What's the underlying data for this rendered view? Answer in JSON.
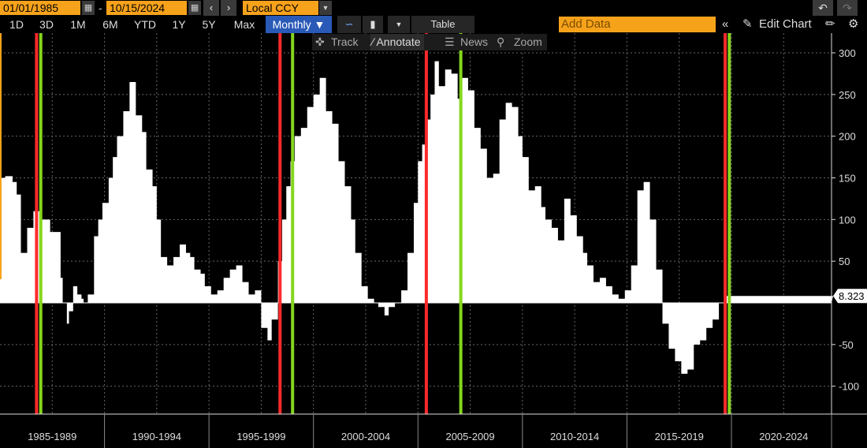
{
  "toolbar": {
    "start_date": "01/01/1985",
    "end_date": "10/15/2024",
    "date_separator": "-",
    "currency": "Local CCY",
    "prev_icon": "chevron-left-icon",
    "next_icon": "chevron-right-icon",
    "undo_icon": "undo-icon",
    "redo_icon": "redo-icon"
  },
  "periods": [
    "1D",
    "3D",
    "1M",
    "6M",
    "YTD",
    "1Y",
    "5Y",
    "Max"
  ],
  "frequency": "Monthly ▼",
  "table_label": "Table",
  "add_data_placeholder": "Add Data",
  "collapse_label": "«",
  "edit_chart_label": "Edit Chart",
  "tools": {
    "track": "Track",
    "annotate": "Annotate",
    "news": "News",
    "zoom": "Zoom"
  },
  "colors": {
    "accent_orange": "#f7a21b",
    "active_blue": "#2a5ab8",
    "background": "#000000",
    "area_fill": "#ffffff",
    "red_marker": "#ff2a2a",
    "green_marker": "#84d61d"
  },
  "chart_data": {
    "type": "area",
    "last_value_label": "8.323",
    "x_range": [
      1985.0,
      2024.79
    ],
    "y_range": [
      -125,
      310
    ],
    "y_ticks": [
      300,
      250,
      200,
      150,
      100,
      50,
      0,
      -50,
      -100
    ],
    "x_tick_labels": [
      "1985-1989",
      "1990-1994",
      "1995-1999",
      "2000-2004",
      "2005-2009",
      "2010-2014",
      "2015-2019",
      "2020-2024"
    ],
    "grid": true,
    "red_markers": [
      1986.75,
      1998.4,
      2005.4,
      2019.7
    ],
    "green_markers": [
      1986.95,
      1999.0,
      2007.05,
      2019.9
    ],
    "series": [
      {
        "x": [
          1985.0,
          1985.25,
          1985.6,
          1985.8,
          1986.0,
          1986.3,
          1986.6,
          1986.9,
          1987.1,
          1987.4,
          1987.6,
          1987.9,
          1988.0,
          1988.2,
          1988.3,
          1988.5,
          1988.7,
          1988.9,
          1989.0,
          1989.2,
          1989.5,
          1989.7,
          1989.9,
          1990.2,
          1990.4,
          1990.6,
          1990.9,
          1991.2,
          1991.5,
          1991.8,
          1992.0,
          1992.3,
          1992.5,
          1992.7,
          1993.0,
          1993.3,
          1993.6,
          1993.9,
          1994.1,
          1994.3,
          1994.6,
          1994.8,
          1995.1,
          1995.4,
          1995.7,
          1996.0,
          1996.3,
          1996.6,
          1996.9,
          1997.2,
          1997.5,
          1997.8,
          1998.0,
          1998.3,
          1998.5,
          1998.7,
          1998.9,
          1999.1,
          1999.4,
          1999.7,
          2000.0,
          2000.3,
          2000.6,
          2000.9,
          2001.2,
          2001.5,
          2001.8,
          2002.0,
          2002.3,
          2002.6,
          2002.9,
          2003.1,
          2003.4,
          2003.6,
          2003.9,
          2004.2,
          2004.5,
          2004.8,
          2005.0,
          2005.2,
          2005.4,
          2005.6,
          2005.8,
          2006.0,
          2006.3,
          2006.6,
          2006.9,
          2007.1,
          2007.4,
          2007.7,
          2008.0,
          2008.3,
          2008.6,
          2008.9,
          2009.2,
          2009.5,
          2009.8,
          2010.0,
          2010.3,
          2010.6,
          2010.9,
          2011.1,
          2011.4,
          2011.7,
          2012.0,
          2012.3,
          2012.6,
          2012.9,
          2013.1,
          2013.4,
          2013.7,
          2014.0,
          2014.3,
          2014.6,
          2014.9,
          2015.2,
          2015.5,
          2015.8,
          2016.1,
          2016.4,
          2016.7,
          2017.0,
          2017.3,
          2017.6,
          2017.9,
          2018.2,
          2018.5,
          2018.8,
          2019.1,
          2019.4,
          2019.7,
          2019.9,
          2020.2,
          2020.4,
          2020.7,
          2021.0,
          2021.2,
          2021.5,
          2021.7,
          2022.0,
          2022.3,
          2022.6,
          2022.9,
          2023.1,
          2023.4,
          2023.7,
          2024.0,
          2024.3,
          2024.5,
          2024.79
        ],
        "values": [
          150,
          152,
          145,
          130,
          60,
          90,
          110,
          100,
          100,
          85,
          85,
          30,
          0,
          -25,
          -10,
          20,
          10,
          5,
          0,
          10,
          80,
          100,
          120,
          150,
          175,
          200,
          230,
          265,
          225,
          205,
          160,
          140,
          100,
          55,
          45,
          55,
          70,
          60,
          55,
          40,
          35,
          20,
          10,
          15,
          30,
          40,
          45,
          25,
          10,
          15,
          -30,
          -45,
          -20,
          50,
          100,
          140,
          170,
          200,
          210,
          235,
          250,
          270,
          230,
          215,
          170,
          140,
          100,
          60,
          20,
          5,
          0,
          -5,
          -15,
          -5,
          0,
          15,
          60,
          120,
          170,
          190,
          220,
          250,
          290,
          260,
          280,
          275,
          245,
          270,
          255,
          210,
          185,
          150,
          155,
          220,
          240,
          235,
          200,
          175,
          135,
          140,
          115,
          100,
          90,
          75,
          125,
          105,
          80,
          60,
          45,
          25,
          30,
          20,
          10,
          5,
          15,
          45,
          135,
          145,
          100,
          40,
          -25,
          -55,
          -70,
          -85,
          -80,
          -50,
          -45,
          -30,
          -20,
          0,
          8.323,
          8.323,
          8.323,
          8.323,
          8.323,
          8.323,
          8.323,
          8.323,
          8.323,
          8.323,
          8.323,
          8.323,
          8.323,
          8.323,
          8.323,
          8.323,
          8.323,
          8.323,
          8.323,
          8.323
        ]
      }
    ]
  }
}
